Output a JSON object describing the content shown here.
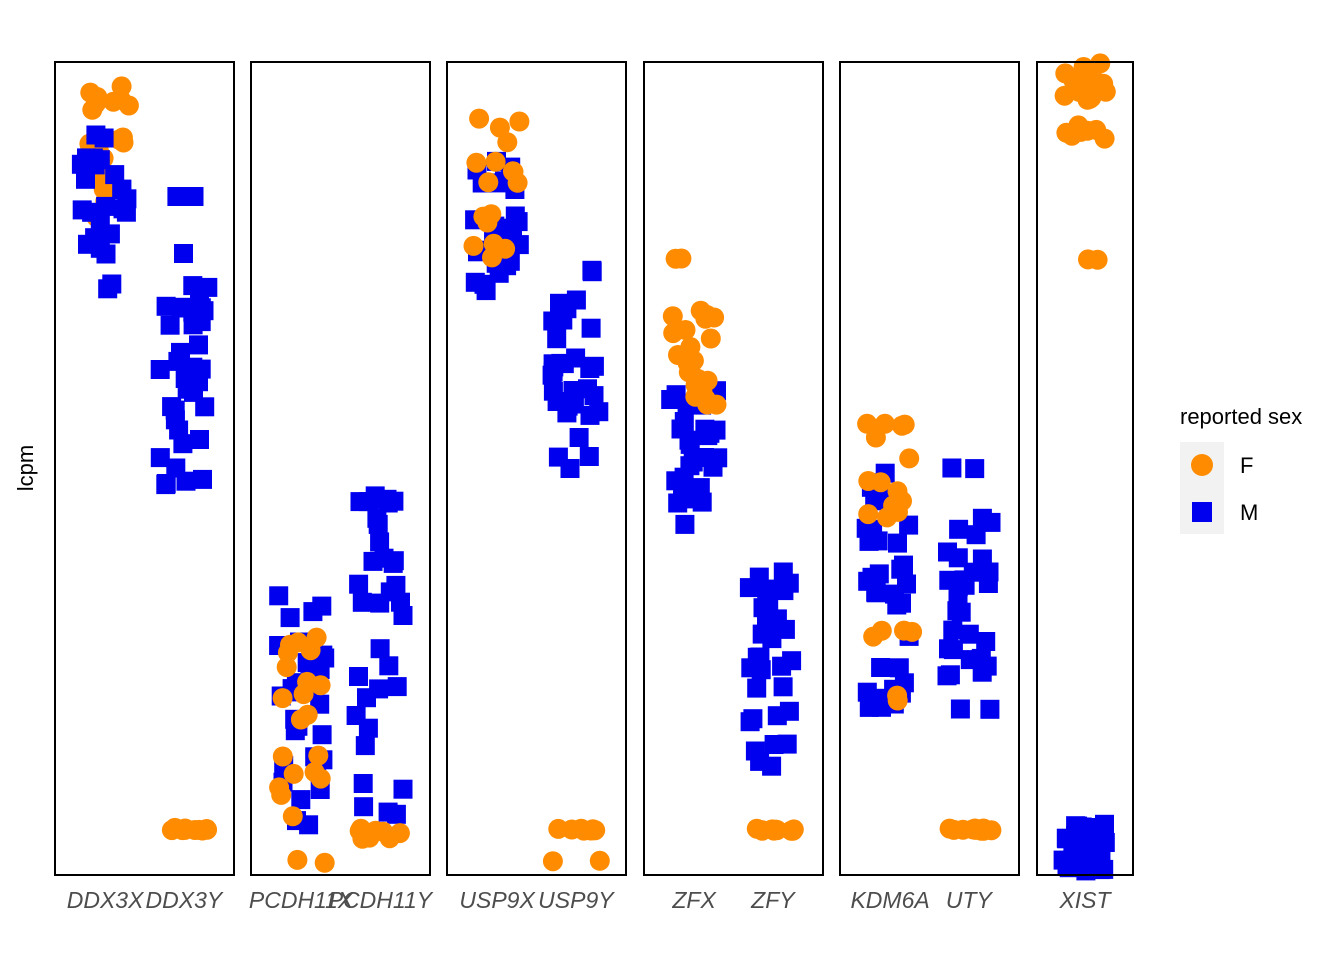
{
  "chart_data": {
    "type": "scatter",
    "ylabel": "lcpm",
    "legend": {
      "title": "reported sex",
      "placement": "right",
      "entries": [
        {
          "label": "F",
          "color": "#FF8C00",
          "shape": "circle"
        },
        {
          "label": "M",
          "color": "#0000EE",
          "shape": "square"
        }
      ]
    },
    "ylim": [
      0,
      100
    ],
    "grid": false,
    "panels": [
      {
        "genes": [
          "DDX3X",
          "DDX3Y"
        ],
        "points": [
          {
            "gene": "DDX3X",
            "sex": "F",
            "ranges": [
              [
                89,
                99,
                10
              ],
              [
                84,
                92,
                6
              ],
              [
                80,
                89,
                4
              ]
            ]
          },
          {
            "gene": "DDX3X",
            "sex": "M",
            "ranges": [
              [
                72,
                96,
                22
              ],
              [
                73,
                80,
                3
              ]
            ]
          },
          {
            "gene": "DDX3Y",
            "sex": "M",
            "ranges": [
              [
                56,
                77,
                26
              ],
              [
                47,
                60,
                10
              ],
              [
                48,
                49,
                1
              ],
              [
                84,
                84,
                2
              ]
            ]
          },
          {
            "gene": "DDX3Y",
            "sex": "F",
            "ranges": [
              [
                5,
                5.4,
                10
              ]
            ]
          }
        ]
      },
      {
        "genes": [
          "PCDH11X",
          "PCDH11Y"
        ],
        "points": [
          {
            "gene": "PCDH11X",
            "sex": "M",
            "ranges": [
              [
                5,
                35,
                30
              ]
            ]
          },
          {
            "gene": "PCDH11X",
            "sex": "F",
            "ranges": [
              [
                5,
                34,
                20
              ],
              [
                1,
                1.5,
                2
              ]
            ]
          },
          {
            "gene": "PCDH11Y",
            "sex": "M",
            "ranges": [
              [
                6,
                47,
                32
              ],
              [
                46,
                46,
                2
              ]
            ]
          },
          {
            "gene": "PCDH11Y",
            "sex": "F",
            "ranges": [
              [
                4,
                5.5,
                10
              ]
            ]
          }
        ]
      },
      {
        "genes": [
          "USP9X",
          "USP9Y"
        ],
        "points": [
          {
            "gene": "USP9X",
            "sex": "M",
            "ranges": [
              [
                72,
                89,
                28
              ]
            ]
          },
          {
            "gene": "USP9X",
            "sex": "F",
            "ranges": [
              [
                86,
                94,
                8
              ],
              [
                77,
                82,
                5
              ],
              [
                76,
                78,
                3
              ],
              [
                85,
                86,
                2
              ]
            ]
          },
          {
            "gene": "USP9Y",
            "sex": "M",
            "ranges": [
              [
                50,
                72,
                30
              ],
              [
                74,
                75,
                2
              ]
            ]
          },
          {
            "gene": "USP9Y",
            "sex": "F",
            "ranges": [
              [
                5,
                5.3,
                8
              ],
              [
                1,
                1.3,
                2
              ]
            ]
          }
        ]
      },
      {
        "genes": [
          "ZFX",
          "ZFY"
        ],
        "points": [
          {
            "gene": "ZFX",
            "sex": "M",
            "ranges": [
              [
                43,
                60,
                30
              ]
            ]
          },
          {
            "gene": "ZFX",
            "sex": "F",
            "ranges": [
              [
                58,
                70,
                20
              ],
              [
                76,
                76.3,
                2
              ],
              [
                57,
                59,
                3
              ]
            ]
          },
          {
            "gene": "ZFY",
            "sex": "M",
            "ranges": [
              [
                13,
                38,
                30
              ]
            ]
          },
          {
            "gene": "ZFY",
            "sex": "F",
            "ranges": [
              [
                5,
                5.3,
                10
              ]
            ]
          }
        ]
      },
      {
        "genes": [
          "KDM6A",
          "UTY"
        ],
        "points": [
          {
            "gene": "KDM6A",
            "sex": "M",
            "ranges": [
              [
                20,
                51,
                35
              ]
            ]
          },
          {
            "gene": "KDM6A",
            "sex": "F",
            "ranges": [
              [
                42,
                56,
                12
              ],
              [
                29,
                30,
                4
              ],
              [
                21,
                22,
                2
              ],
              [
                55,
                56,
                3
              ]
            ]
          },
          {
            "gene": "UTY",
            "sex": "M",
            "ranges": [
              [
                24,
                44,
                28
              ],
              [
                50,
                50.2,
                2
              ],
              [
                20,
                20.2,
                2
              ]
            ]
          },
          {
            "gene": "UTY",
            "sex": "F",
            "ranges": [
              [
                5,
                5.3,
                10
              ]
            ]
          }
        ]
      },
      {
        "genes": [
          "XIST"
        ],
        "points": [
          {
            "gene": "XIST",
            "sex": "F",
            "ranges": [
              [
                96,
                101,
                22
              ],
              [
                91,
                93,
                5
              ],
              [
                91,
                92,
                2
              ],
              [
                76,
                76.3,
                2
              ]
            ]
          },
          {
            "gene": "XIST",
            "sex": "M",
            "ranges": [
              [
                0,
                6,
                40
              ]
            ]
          }
        ]
      }
    ]
  }
}
